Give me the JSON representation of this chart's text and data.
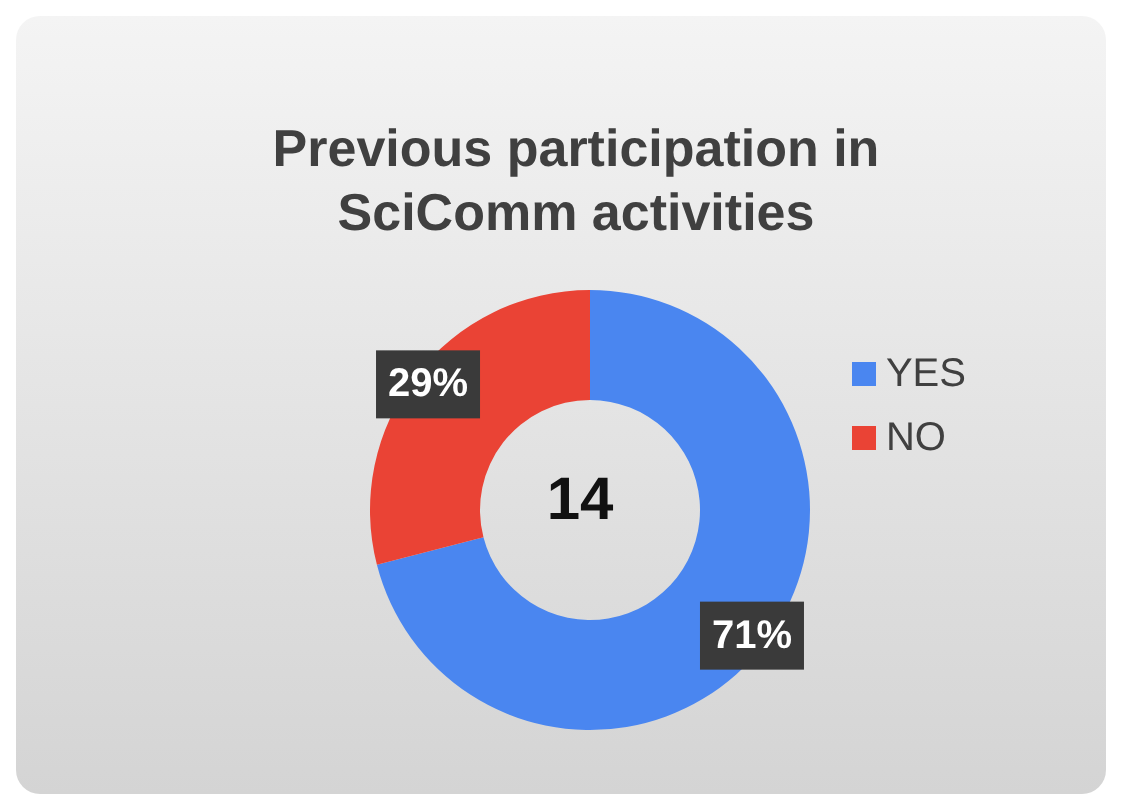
{
  "chart_data": {
    "type": "donut",
    "title": "Previous participation in SciComm activities",
    "categories": [
      "YES",
      "NO"
    ],
    "values": [
      71,
      29
    ],
    "colors": [
      "#4a86f0",
      "#ea4335"
    ],
    "value_labels": [
      "71%",
      "29%"
    ],
    "legend": "right",
    "annotations": [
      "14"
    ]
  }
}
